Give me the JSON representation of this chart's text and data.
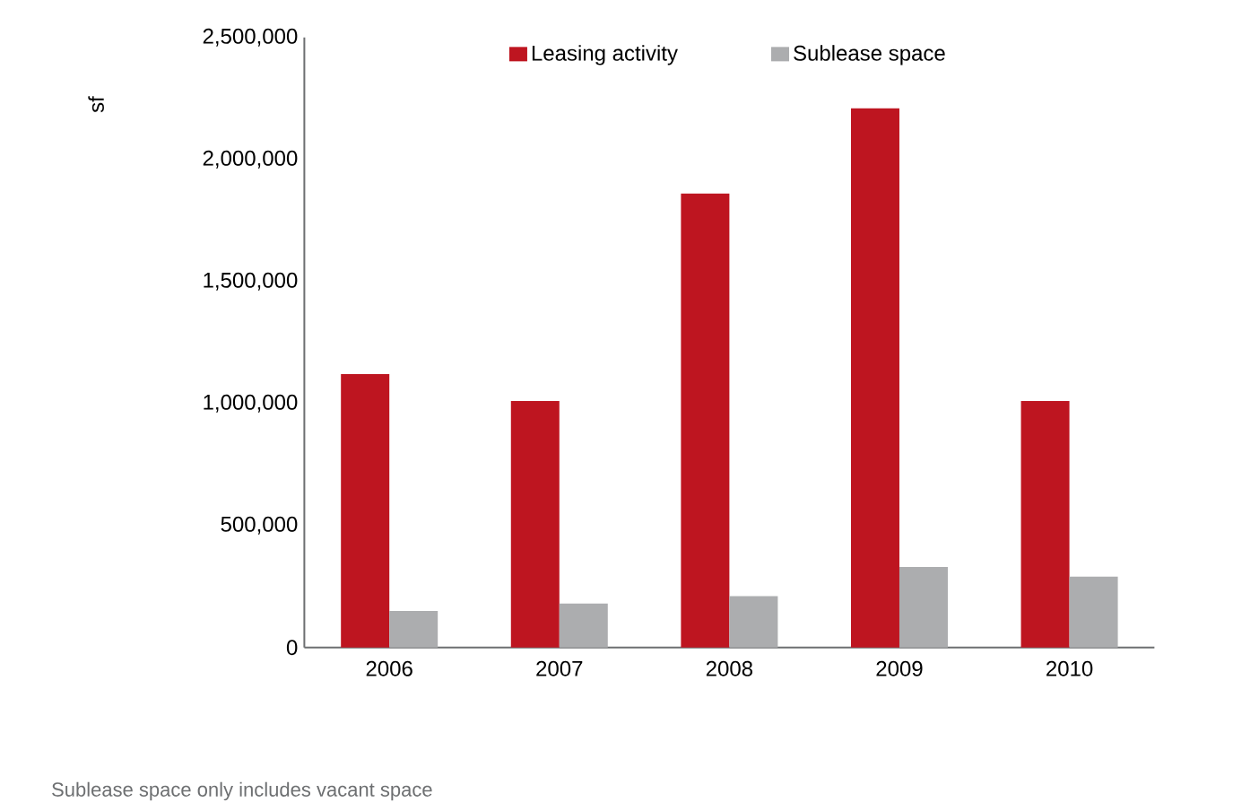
{
  "chart_data": {
    "type": "bar",
    "ylabel": "sf",
    "categories": [
      "2006",
      "2007",
      "2008",
      "2009",
      "2010"
    ],
    "series": [
      {
        "name": "Leasing activity",
        "color": "#be1520",
        "values": [
          1120000,
          1010000,
          1860000,
          2210000,
          1010000
        ]
      },
      {
        "name": "Sublease space",
        "color": "#acadaf",
        "values": [
          150000,
          180000,
          210000,
          330000,
          290000
        ]
      }
    ],
    "ylim": [
      0,
      2500000
    ],
    "yticks": [
      {
        "value": 0,
        "label": "0"
      },
      {
        "value": 500000,
        "label": "500,000"
      },
      {
        "value": 1000000,
        "label": "1,000,000"
      },
      {
        "value": 1500000,
        "label": "1,500,000"
      },
      {
        "value": 2000000,
        "label": "2,000,000"
      },
      {
        "value": 2500000,
        "label": "2,500,000"
      }
    ],
    "grid": false,
    "legend": "top",
    "annotations": [
      "Sublease space only includes vacant space"
    ]
  }
}
